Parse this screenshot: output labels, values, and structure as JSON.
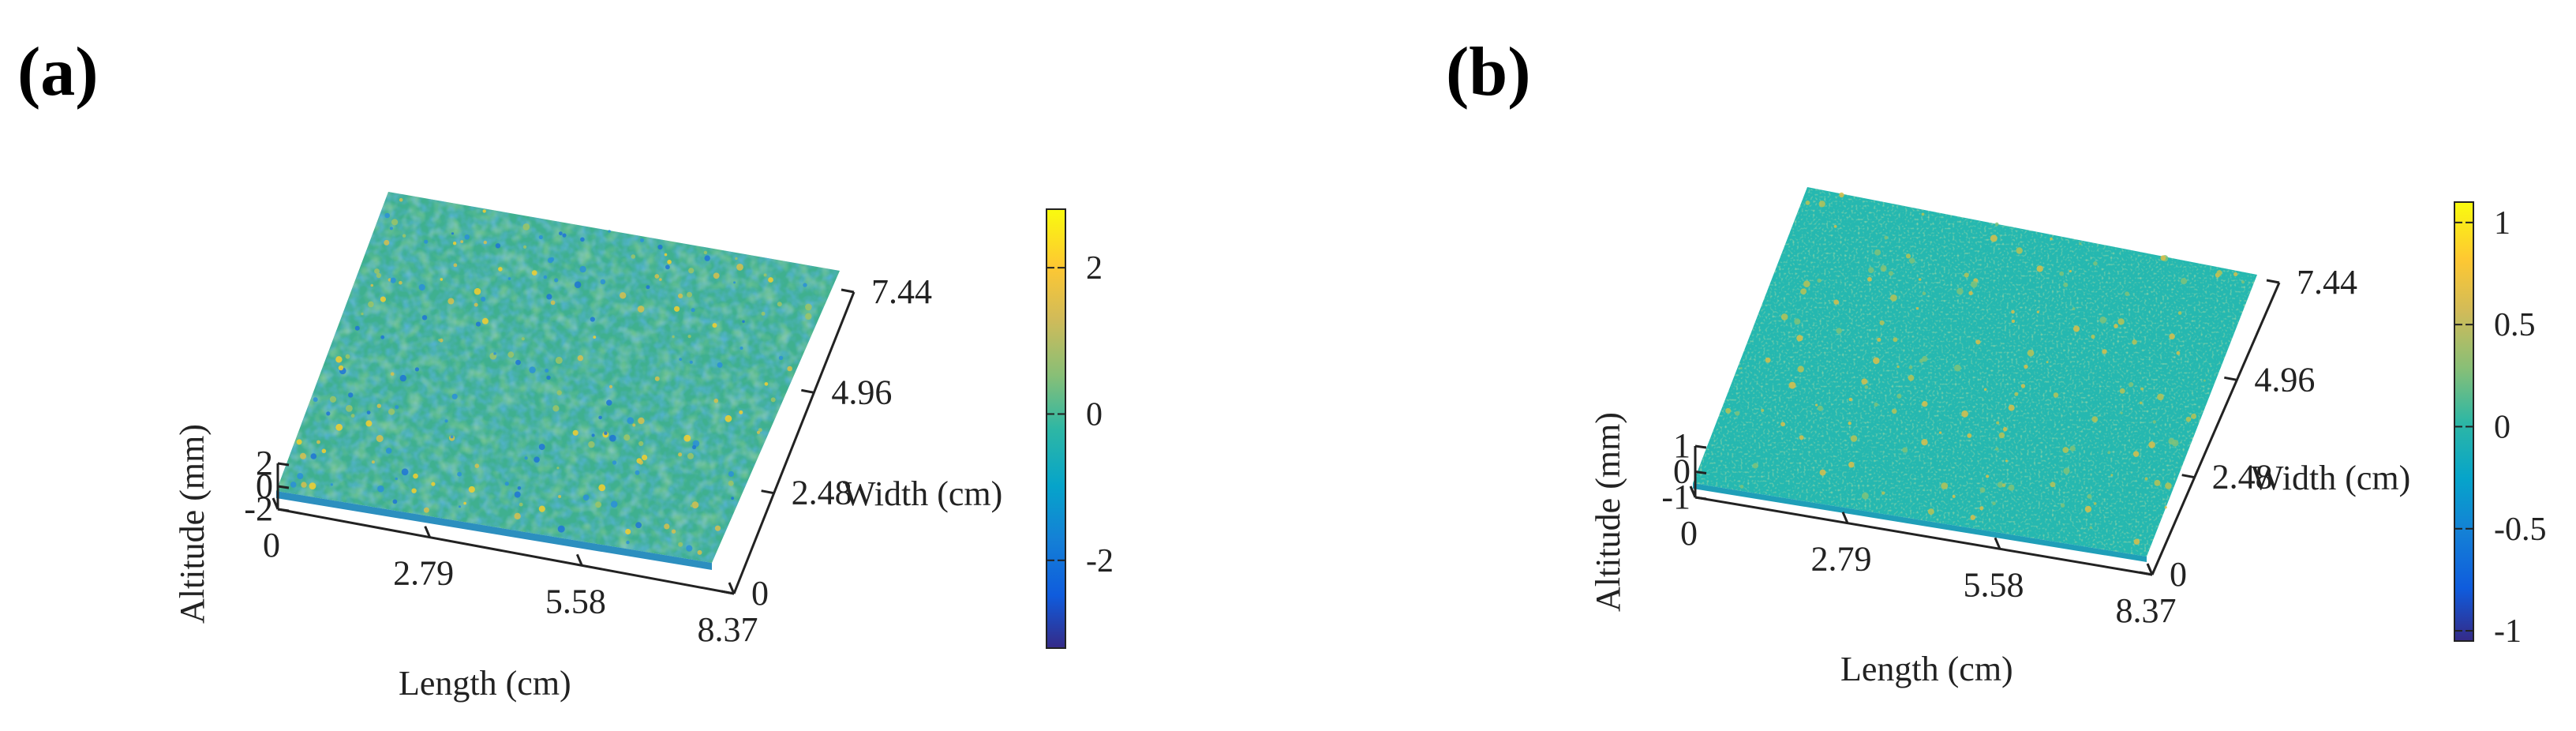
{
  "figure": {
    "panels": [
      {
        "label": "(a)",
        "chart_data": {
          "type": "surface",
          "xlabel": "Length (cm)",
          "ylabel": "Width (cm)",
          "zlabel": "Altitude (mm)",
          "x_ticks": [
            "0",
            "2.79",
            "5.58",
            "8.37"
          ],
          "y_ticks": [
            "0",
            "2.48",
            "4.96",
            "7.44"
          ],
          "z_ticks": [
            "2",
            "0",
            "-2"
          ],
          "xlim": [
            0,
            8.37
          ],
          "ylim": [
            0,
            7.44
          ],
          "zlim": [
            -2,
            2
          ],
          "colorbar": {
            "ticks": [
              "2",
              "0",
              "-2"
            ],
            "range": [
              -3.2,
              2.8
            ],
            "colormap": "parula"
          },
          "surface_color_base": "#3fb08f"
        }
      },
      {
        "label": "(b)",
        "chart_data": {
          "type": "surface",
          "xlabel": "Length (cm)",
          "ylabel": "Width (cm)",
          "zlabel": "Altitude (mm)",
          "x_ticks": [
            "0",
            "2.79",
            "5.58",
            "8.37"
          ],
          "y_ticks": [
            "0",
            "2.48",
            "4.96",
            "7.44"
          ],
          "z_ticks": [
            "1",
            "0",
            "-1"
          ],
          "xlim": [
            0,
            8.37
          ],
          "ylim": [
            0,
            7.44
          ],
          "zlim": [
            -1,
            1
          ],
          "colorbar": {
            "ticks": [
              "1",
              "0.5",
              "0",
              "-0.5",
              "-1"
            ],
            "range": [
              -1.05,
              1.1
            ],
            "colormap": "parula"
          },
          "surface_color_base": "#25b8b0"
        }
      }
    ]
  }
}
